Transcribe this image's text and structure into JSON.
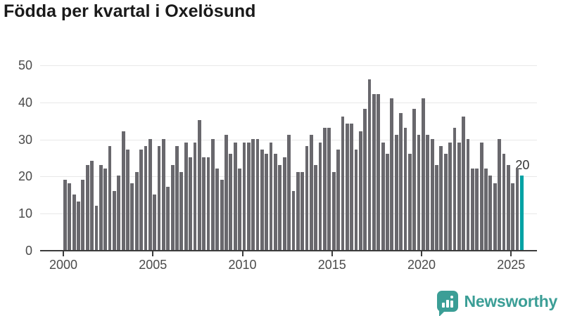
{
  "title": "Födda per kvartal i Oxelösund",
  "chart_data": {
    "type": "bar",
    "title": "Födda per kvartal i Oxelösund",
    "x_unit": "quarter",
    "start_year": 2000,
    "values": [
      19,
      18,
      15,
      13,
      19,
      23,
      24,
      12,
      23,
      22,
      28,
      16,
      20,
      32,
      27,
      18,
      21,
      27,
      28,
      30,
      15,
      28,
      30,
      17,
      23,
      28,
      21,
      29,
      25,
      29,
      35,
      25,
      25,
      30,
      22,
      19,
      31,
      26,
      29,
      22,
      29,
      29,
      30,
      30,
      27,
      26,
      29,
      26,
      23,
      25,
      31,
      16,
      21,
      21,
      28,
      31,
      23,
      29,
      33,
      33,
      21,
      27,
      36,
      34,
      34,
      27,
      32,
      38,
      46,
      42,
      42,
      29,
      26,
      41,
      31,
      37,
      33,
      26,
      38,
      31,
      41,
      31,
      30,
      23,
      28,
      26,
      29,
      33,
      29,
      36,
      30,
      22,
      22,
      29,
      22,
      20,
      18,
      30,
      26,
      23,
      18,
      22,
      20
    ],
    "ylim": [
      0,
      50
    ],
    "y_ticks": [
      0,
      10,
      20,
      30,
      40,
      50
    ],
    "x_ticks": [
      {
        "label": "2000",
        "index": 0
      },
      {
        "label": "2005",
        "index": 20
      },
      {
        "label": "2010",
        "index": 40
      },
      {
        "label": "2015",
        "index": 60
      },
      {
        "label": "2020",
        "index": 80
      },
      {
        "label": "2025",
        "index": 100
      }
    ],
    "grid": true,
    "legend": "none",
    "bar_color": "#69686d",
    "highlight_color": "#00a2a4",
    "highlight_index": 102,
    "annotation": {
      "text": "20",
      "index": 102
    }
  },
  "logo": {
    "text": "Newsworthy",
    "color": "#3b9e96",
    "icon": "bar-chart-speech-bubble-icon"
  }
}
